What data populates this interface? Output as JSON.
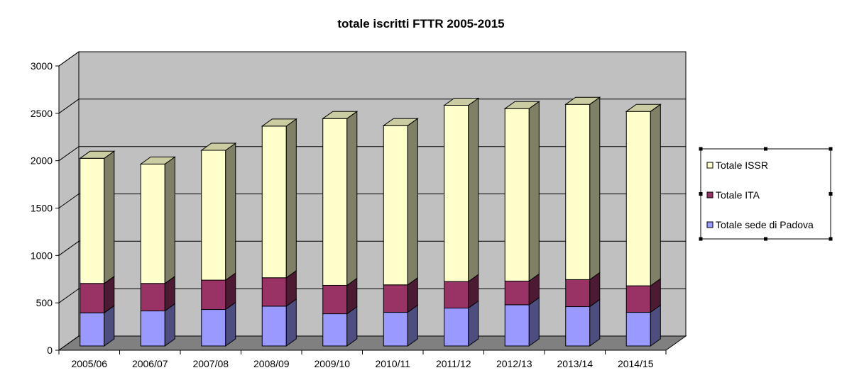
{
  "chart_data": {
    "type": "bar",
    "stacked": true,
    "three_d": true,
    "title": "totale iscritti FTTR 2005-2015",
    "xlabel": "",
    "ylabel": "",
    "ylim": [
      0,
      3000
    ],
    "y_ticks": [
      0,
      500,
      1000,
      1500,
      2000,
      2500,
      3000
    ],
    "grid": true,
    "legend_position": "right",
    "categories": [
      "2005/06",
      "2006/07",
      "2007/08",
      "2008/09",
      "2009/10",
      "2010/11",
      "2011/12",
      "2012/13",
      "2013/14",
      "2014/15"
    ],
    "series": [
      {
        "name": "Totale sede di Padova",
        "color": "#9999ff",
        "values": [
          350,
          370,
          385,
          420,
          340,
          355,
          400,
          435,
          415,
          355
        ]
      },
      {
        "name": "Totale ITA",
        "color": "#993366",
        "values": [
          310,
          290,
          310,
          300,
          300,
          290,
          280,
          250,
          285,
          280
        ]
      },
      {
        "name": "Totale ISSR",
        "color": "#ffffcc",
        "values": [
          1320,
          1260,
          1370,
          1600,
          1760,
          1680,
          1860,
          1820,
          1850,
          1840
        ]
      }
    ],
    "legend": [
      "Totale ISSR",
      "Totale ITA",
      "Totale sede di Padova"
    ]
  },
  "colors": {
    "wall": "#c0c0c0",
    "floor": "#808080",
    "grid": "#000000",
    "background": "#ffffff"
  }
}
